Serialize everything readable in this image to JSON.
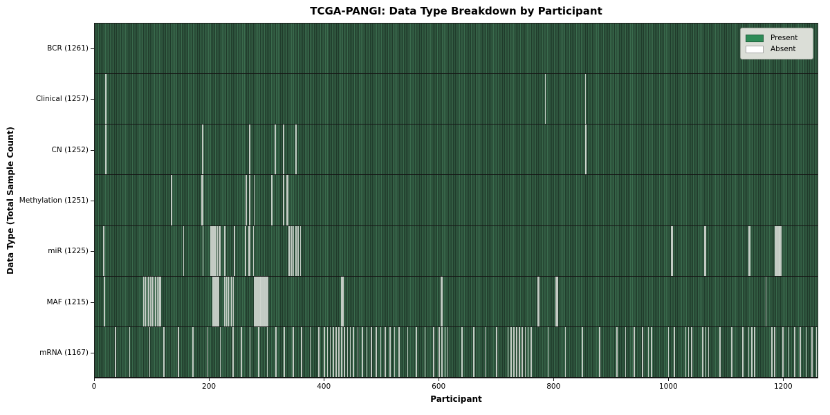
{
  "chart_data": {
    "type": "heatmap",
    "title": "TCGA-PANGI: Data Type Breakdown by Participant",
    "xlabel": "Participant",
    "ylabel": "Data Type (Total Sample Count)",
    "n_participants": 1261,
    "x_ticks": [
      0,
      200,
      400,
      600,
      800,
      1000,
      1200
    ],
    "legend": {
      "position": "upper right",
      "entries": [
        {
          "label": "Present",
          "color": "#2e8b57"
        },
        {
          "label": "Absent",
          "color": "#ffffff"
        }
      ]
    },
    "colors": {
      "present": "#2e8b57",
      "absent": "#ffffff",
      "bar_texture_light": "#3a6b4d",
      "bar_texture_dark": "#203b2b",
      "absent_stripe": "#d0d6cf",
      "legend_bg": "#dbded7"
    },
    "rows": [
      {
        "label": "BCR (1261)",
        "data_type": "BCR",
        "total": 1261,
        "absent_count": 0,
        "absent_indices": []
      },
      {
        "label": "Clinical (1257)",
        "data_type": "Clinical",
        "total": 1257,
        "absent_count": 4,
        "absent_indices": [
          18,
          19,
          785,
          855
        ]
      },
      {
        "label": "CN (1252)",
        "data_type": "CN",
        "total": 1252,
        "absent_count": 9,
        "absent_indices": [
          18,
          19,
          187,
          269,
          314,
          328,
          350,
          855,
          856
        ]
      },
      {
        "label": "Methylation (1251)",
        "data_type": "Methylation",
        "total": 1251,
        "absent_count": 10,
        "absent_indices": [
          133,
          186,
          188,
          263,
          269,
          277,
          308,
          328,
          334,
          336
        ]
      },
      {
        "label": "miR (1225)",
        "data_type": "miR",
        "total": 1225,
        "absent_count": 36,
        "absent_indices": [
          15,
          154,
          188,
          201,
          203,
          205,
          208,
          210,
          213,
          216,
          218,
          226,
          243,
          262,
          268,
          270,
          276,
          338,
          340,
          343,
          346,
          350,
          354,
          358,
          1005,
          1007,
          1063,
          1065,
          1140,
          1142,
          1186,
          1188,
          1190,
          1192,
          1194,
          1196
        ]
      },
      {
        "label": "MAF (1215)",
        "data_type": "MAF",
        "total": 1215,
        "absent_count": 46,
        "absent_indices": [
          16,
          84,
          87,
          90,
          93,
          96,
          99,
          102,
          105,
          108,
          111,
          114,
          205,
          207,
          209,
          211,
          213,
          215,
          226,
          229,
          232,
          235,
          238,
          241,
          277,
          279,
          281,
          283,
          285,
          287,
          289,
          291,
          293,
          295,
          297,
          299,
          301,
          430,
          432,
          603,
          605,
          772,
          774,
          804,
          806,
          1170
        ]
      },
      {
        "label": "mRNA (1167)",
        "data_type": "mRNA",
        "total": 1167,
        "absent_count": 94,
        "absent_indices": [
          35,
          60,
          95,
          120,
          145,
          170,
          195,
          218,
          240,
          255,
          270,
          285,
          300,
          315,
          330,
          345,
          360,
          375,
          390,
          400,
          405,
          410,
          415,
          420,
          425,
          430,
          435,
          440,
          445,
          450,
          458,
          466,
          474,
          482,
          490,
          498,
          506,
          514,
          522,
          530,
          545,
          560,
          575,
          590,
          600,
          605,
          610,
          615,
          640,
          660,
          680,
          700,
          720,
          725,
          730,
          735,
          740,
          745,
          750,
          755,
          760,
          790,
          820,
          850,
          880,
          910,
          925,
          940,
          955,
          965,
          970,
          1000,
          1010,
          1030,
          1035,
          1040,
          1060,
          1065,
          1070,
          1090,
          1110,
          1130,
          1140,
          1145,
          1150,
          1180,
          1185,
          1200,
          1210,
          1220,
          1230,
          1240,
          1250,
          1258
        ]
      }
    ]
  }
}
